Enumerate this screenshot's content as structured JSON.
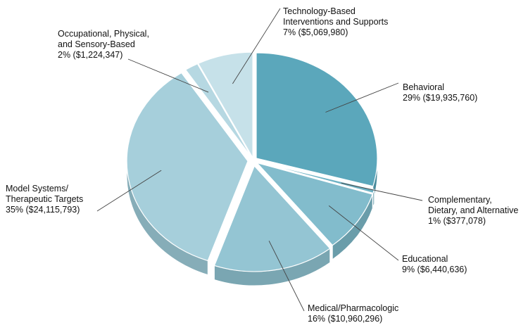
{
  "chart_data": {
    "type": "pie",
    "style": "3d-exploded",
    "categories": [
      "Behavioral",
      "Complementary, Dietary, and Alternative",
      "Educational",
      "Medical/Pharmacologic",
      "Model Systems/ Therapeutic Targets",
      "Occupational, Physical, and Sensory-Based",
      "Technology-Based Interventions and Supports"
    ],
    "values": [
      19935760,
      377078,
      6440636,
      10960296,
      24115793,
      1224347,
      5069980
    ],
    "percent_labels": [
      "29%",
      "1%",
      "9%",
      "16%",
      "35%",
      "2%",
      "7%"
    ],
    "amount_labels": [
      "($19,935,760)",
      "($377,078)",
      "($6,440,636)",
      "($10,960,296)",
      "($24,115,793)",
      "($1,224,347)",
      "($5,069,980)"
    ],
    "label_lines": [
      [
        "Behavioral"
      ],
      [
        "Complementary,",
        "Dietary, and Alternative"
      ],
      [
        "Educational"
      ],
      [
        "Medical/Pharmacologic"
      ],
      [
        "Model Systems/",
        "Therapeutic Targets"
      ],
      [
        "Occupational, Physical,",
        "and Sensory-Based"
      ],
      [
        "Technology-Based",
        "Interventions and Supports"
      ]
    ],
    "colors": [
      "#5ba7bb",
      "#6eb2c4",
      "#82bccc",
      "#94c5d3",
      "#a6cfdb",
      "#b6d8e2",
      "#c6e1e9"
    ],
    "side_colors": [
      "#4a8b9c",
      "#5a94a3",
      "#6a9daa",
      "#7aa6b2",
      "#86adb8",
      "#93b6c0",
      "#a0bfc8"
    ],
    "title": ""
  }
}
